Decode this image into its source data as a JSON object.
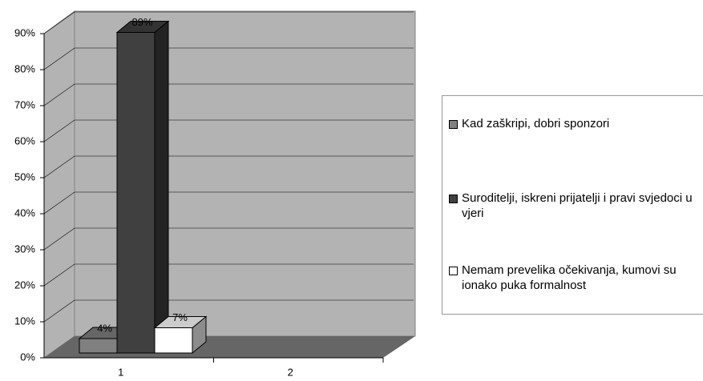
{
  "chart_data": {
    "type": "bar3d",
    "categories": [
      "1",
      "2"
    ],
    "series": [
      {
        "name": "Kad zaškripi, dobri sponzori",
        "color": "#808080",
        "values": [
          4,
          null
        ],
        "value_labels": [
          "4%",
          null
        ]
      },
      {
        "name": "Suroditelji, iskreni prijatelji i pravi svjedoci u vjeri",
        "color": "#404040",
        "values": [
          89,
          null
        ],
        "value_labels": [
          "89%",
          null
        ]
      },
      {
        "name": "Nemam prevelika očekivanja, kumovi su ionako puka formalnost",
        "color": "#ffffff",
        "values": [
          7,
          null
        ],
        "value_labels": [
          "7%",
          null
        ]
      }
    ],
    "ylim": [
      0,
      90
    ],
    "yticks": [
      {
        "value": 0,
        "label": "0%"
      },
      {
        "value": 10,
        "label": "10%"
      },
      {
        "value": 20,
        "label": "20%"
      },
      {
        "value": 30,
        "label": "30%"
      },
      {
        "value": 40,
        "label": "40%"
      },
      {
        "value": 50,
        "label": "50%"
      },
      {
        "value": 60,
        "label": "60%"
      },
      {
        "value": 70,
        "label": "70%"
      },
      {
        "value": 80,
        "label": "80%"
      },
      {
        "value": 90,
        "label": "90%"
      }
    ],
    "grid": true,
    "legend": "right"
  }
}
